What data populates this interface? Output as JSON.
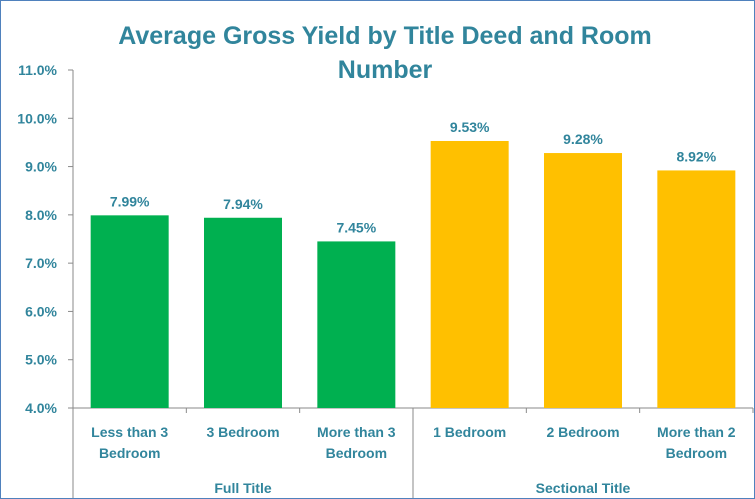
{
  "chart_data": {
    "type": "bar",
    "title_lines": [
      "Average Gross Yield by Title Deed and Room",
      "Number"
    ],
    "categories": [
      [
        "Less than 3",
        "Bedroom"
      ],
      [
        "3 Bedroom"
      ],
      [
        "More than 3",
        "Bedroom"
      ],
      [
        "1 Bedroom"
      ],
      [
        "2 Bedroom"
      ],
      [
        "More than 2",
        "Bedroom"
      ]
    ],
    "groups": [
      {
        "label": "Full Title",
        "count": 3
      },
      {
        "label": "Sectional Title",
        "count": 3
      }
    ],
    "values": [
      7.99,
      7.94,
      7.45,
      9.53,
      9.28,
      8.92
    ],
    "data_labels": [
      "7.99%",
      "7.94%",
      "7.45%",
      "9.53%",
      "9.28%",
      "8.92%"
    ],
    "bar_colors": [
      "#00b050",
      "#00b050",
      "#00b050",
      "#ffc000",
      "#ffc000",
      "#ffc000"
    ],
    "ylim": [
      4.0,
      11.0
    ],
    "yticks": [
      4.0,
      5.0,
      6.0,
      7.0,
      8.0,
      9.0,
      10.0,
      11.0
    ],
    "ytick_labels": [
      "4.0%",
      "5.0%",
      "6.0%",
      "7.0%",
      "8.0%",
      "9.0%",
      "10.0%",
      "11.0%"
    ],
    "grid": false,
    "legend": "none"
  }
}
